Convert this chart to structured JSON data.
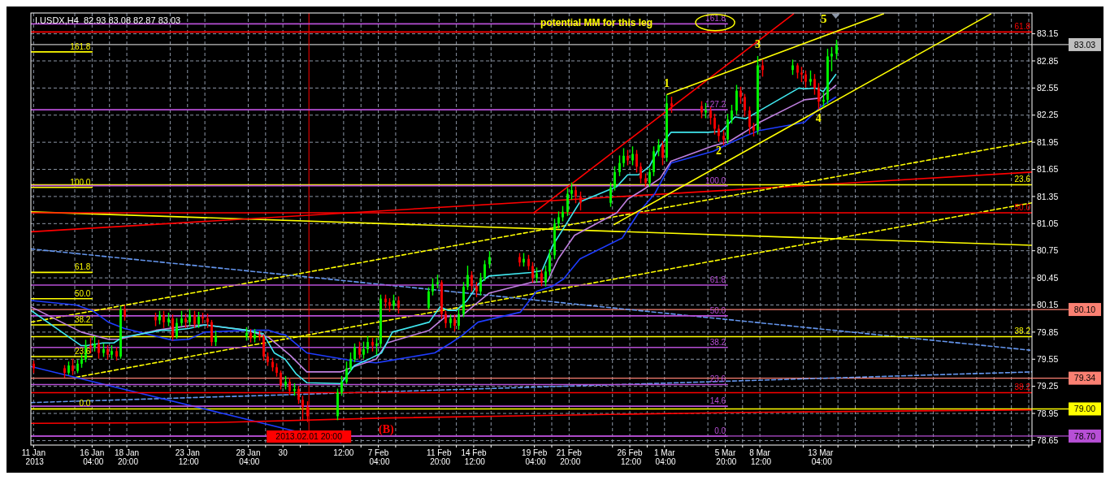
{
  "chart_data": {
    "type": "candlestick",
    "title": "I.USDX,H4  82.93 83.08 82.87 83.03",
    "xlim": [
      "2013-01-11T11:00",
      "2013-03-29T10:00"
    ],
    "ylim": [
      78.6,
      83.38
    ],
    "yticks": [
      78.65,
      78.95,
      79.25,
      79.55,
      79.85,
      80.15,
      80.45,
      80.75,
      81.05,
      81.35,
      81.65,
      81.95,
      82.25,
      82.55,
      82.85,
      83.15
    ],
    "xticks": [
      {
        "value": "2013-01-11T16:00",
        "label": "11 Jan 2013"
      },
      {
        "value": "2013-01-14T20:00",
        "label": null
      },
      {
        "value": "2013-01-16T04:00",
        "label": "16 Jan 04:00"
      },
      {
        "value": "2013-01-17T12:00",
        "label": null
      },
      {
        "value": "2013-01-18T20:00",
        "label": "18 Jan 20:00"
      },
      {
        "value": "2013-01-22T04:00",
        "label": null
      },
      {
        "value": "2013-01-23T12:00",
        "label": "23 Jan 12:00"
      },
      {
        "value": "2013-01-24T20:00",
        "label": null
      },
      {
        "value": "2013-01-28T04:00",
        "label": "28 Jan 04:00"
      },
      {
        "value": "2013-01-29T12:00",
        "label": null
      },
      {
        "value": "2013-01-30T20:00",
        "label": "30"
      },
      {
        "value": "2013-02-01T04:00",
        "label": null
      },
      {
        "value": "2013-02-04T12:00",
        "label": "12:00"
      },
      {
        "value": "2013-02-05T20:00",
        "label": null
      },
      {
        "value": "2013-02-07T04:00",
        "label": "7 Feb 04:00"
      },
      {
        "value": "2013-02-08T12:00",
        "label": null
      },
      {
        "value": "2013-02-11T20:00",
        "label": "11 Feb 20:00"
      },
      {
        "value": "2013-02-13T04:00",
        "label": null
      },
      {
        "value": "2013-02-14T12:00",
        "label": "14 Feb 12:00"
      },
      {
        "value": "2013-02-15T20:00",
        "label": null
      },
      {
        "value": "2013-02-19T04:00",
        "label": "19 Feb 04:00"
      },
      {
        "value": "2013-02-20T12:00",
        "label": null
      },
      {
        "value": "2013-02-21T20:00",
        "label": "21 Feb 20:00"
      },
      {
        "value": "2013-02-25T04:00",
        "label": null
      },
      {
        "value": "2013-02-26T12:00",
        "label": "26 Feb 12:00"
      },
      {
        "value": "2013-02-27T20:00",
        "label": null
      },
      {
        "value": "2013-03-01T04:00",
        "label": "1 Mar 04:00"
      },
      {
        "value": "2013-03-04T12:00",
        "label": null
      },
      {
        "value": "2013-03-05T20:00",
        "label": "5 Mar 20:00"
      },
      {
        "value": "2013-03-07T04:00",
        "label": null
      },
      {
        "value": "2013-03-08T12:00",
        "label": "8 Mar 12:00"
      },
      {
        "value": "2013-03-11T20:00",
        "label": null
      },
      {
        "value": "2013-03-13T04:00",
        "label": "13 Mar 04:00"
      },
      {
        "value": "2013-03-14T12:00",
        "label": null
      },
      {
        "value": "2013-03-15T20:00",
        "label": null
      },
      {
        "value": "2013-03-19T04:00",
        "label": null
      },
      {
        "value": "2013-03-20T12:00",
        "label": null
      },
      {
        "value": "2013-03-21T20:00",
        "label": null
      },
      {
        "value": "2013-03-25T04:00",
        "label": null
      },
      {
        "value": "2013-03-26T12:00",
        "label": null
      },
      {
        "value": "2013-03-27T20:00",
        "label": null
      },
      {
        "value": "2013-03-29T04:00",
        "label": null
      }
    ],
    "grid": true,
    "legend": false,
    "series": [
      {
        "type": "line",
        "color": "#ffff00",
        "x": [
          "2013-01-11T11:00",
          "2013-03-29T10:00"
        ],
        "values": [
          81.18,
          80.81
        ]
      },
      {
        "type": "line",
        "color": "#ff0000",
        "x": [
          "2013-01-11T11:00",
          "2013-03-29T10:00"
        ],
        "values": [
          80.96,
          81.62
        ]
      },
      {
        "type": "line",
        "color": "#ffff00",
        "line_style": "dashed",
        "x": [
          "2013-01-11T11:00",
          "2013-03-29T10:00"
        ],
        "values": [
          79.96,
          81.96
        ]
      },
      {
        "type": "line",
        "color": "#ffff00",
        "line_style": "dashed",
        "x": [
          "2013-01-14T22:00",
          "2013-03-29T10:00"
        ],
        "values": [
          79.35,
          81.28
        ]
      },
      {
        "type": "line",
        "color": "#6495ed",
        "line_style": "dashed",
        "x": [
          "2013-01-11T11:00",
          "2013-03-29T06:00"
        ],
        "values": [
          80.77,
          79.65
        ]
      },
      {
        "type": "line",
        "color": "#6495ed",
        "line_style": "dashed",
        "x": [
          "2013-01-11T11:00",
          "2013-03-29T10:00"
        ],
        "values": [
          79.07,
          79.41
        ]
      },
      {
        "type": "line",
        "color": "#1e3cff",
        "x": [
          "2013-01-11T11:00",
          "2013-02-04T07:00"
        ],
        "values": [
          79.47,
          78.63
        ]
      },
      {
        "type": "line",
        "color": "#ff0000",
        "x": [
          "2013-01-11T11:00",
          "2013-01-25T16:00",
          "2013-02-07T20:00",
          "2013-02-21T00:00",
          "2013-03-06T04:00",
          "2013-03-29T10:00"
        ],
        "values": [
          78.84,
          78.85,
          78.9,
          78.93,
          78.96,
          78.99
        ]
      },
      {
        "type": "line",
        "name": "61.8",
        "color": "#ff0000",
        "x": [
          "2013-01-11T11:00",
          "2013-03-29T10:00"
        ],
        "values": [
          83.17,
          83.17
        ]
      },
      {
        "type": "line",
        "name": "23.6",
        "color": "#ffff00",
        "x": [
          "2013-01-11T11:00",
          "2013-03-29T10:00"
        ],
        "values": [
          81.48,
          81.48
        ]
      },
      {
        "type": "line",
        "name": "50.0",
        "color": "#ff0000",
        "x": [
          "2013-01-11T11:00",
          "2013-03-29T10:00"
        ],
        "values": [
          81.17,
          81.17
        ]
      },
      {
        "type": "line",
        "name": "38.2",
        "color": "#ffff00",
        "x": [
          "2013-01-11T11:00",
          "2013-03-29T10:00"
        ],
        "values": [
          79.8,
          79.8
        ]
      },
      {
        "type": "line",
        "name": "38.2",
        "color": "#ff0000",
        "x": [
          "2013-01-11T11:00",
          "2013-03-29T10:00"
        ],
        "values": [
          79.18,
          79.18
        ]
      },
      {
        "type": "line",
        "name": "161.8",
        "color": "#ffff00",
        "x": [
          "2013-01-11T11:00",
          "2013-01-16T04:00"
        ],
        "values": [
          82.95,
          82.95
        ]
      },
      {
        "type": "line",
        "name": "100.0",
        "color": "#ffff00",
        "x": [
          "2013-01-11T11:00",
          "2013-01-16T04:00"
        ],
        "values": [
          81.45,
          81.45
        ]
      },
      {
        "type": "line",
        "name": "61.8",
        "color": "#ffff00",
        "x": [
          "2013-01-11T11:00",
          "2013-01-16T04:00"
        ],
        "values": [
          80.51,
          80.51
        ]
      },
      {
        "type": "line",
        "name": "50.0",
        "color": "#ffff00",
        "x": [
          "2013-01-11T11:00",
          "2013-01-16T04:00"
        ],
        "values": [
          80.22,
          80.22
        ]
      },
      {
        "type": "line",
        "name": "38.2",
        "color": "#ffff00",
        "x": [
          "2013-01-11T11:00",
          "2013-01-16T04:00"
        ],
        "values": [
          79.93,
          79.93
        ]
      },
      {
        "type": "line",
        "name": "23.6",
        "color": "#ffff00",
        "x": [
          "2013-01-11T11:00",
          "2013-01-16T04:00"
        ],
        "values": [
          79.58,
          79.58
        ]
      },
      {
        "type": "line",
        "name": "0.0",
        "color": "#ffff00",
        "x": [
          "2013-01-11T11:00",
          "2013-01-16T04:00"
        ],
        "values": [
          79.0,
          79.0
        ]
      },
      {
        "type": "line",
        "name": "161.8",
        "color": "#b74fd6",
        "x": [
          "2013-01-11T11:00",
          "2013-03-06T00:00"
        ],
        "values": [
          83.26,
          83.26
        ]
      },
      {
        "type": "line",
        "name": "127.2",
        "color": "#b74fd6",
        "x": [
          "2013-01-11T11:00",
          "2013-03-06T00:00"
        ],
        "values": [
          82.31,
          82.31
        ]
      },
      {
        "type": "line",
        "name": "100.0",
        "color": "#b74fd6",
        "x": [
          "2013-01-11T11:00",
          "2013-03-06T00:00"
        ],
        "values": [
          81.47,
          81.47
        ]
      },
      {
        "type": "line",
        "name": "61.8",
        "color": "#b74fd6",
        "x": [
          "2013-01-11T11:00",
          "2013-03-06T00:00"
        ],
        "values": [
          80.37,
          80.37
        ]
      },
      {
        "type": "line",
        "name": "50.0",
        "color": "#b74fd6",
        "x": [
          "2013-01-11T11:00",
          "2013-03-06T00:00"
        ],
        "values": [
          80.03,
          80.03
        ]
      },
      {
        "type": "line",
        "name": "38.2",
        "color": "#b74fd6",
        "x": [
          "2013-01-11T11:00",
          "2013-03-06T00:00"
        ],
        "values": [
          79.68,
          79.68
        ]
      },
      {
        "type": "line",
        "name": "23.6",
        "color": "#b74fd6",
        "x": [
          "2013-01-11T11:00",
          "2013-03-06T00:00"
        ],
        "values": [
          79.27,
          79.27
        ]
      },
      {
        "type": "line",
        "name": "14.6",
        "color": "#b74fd6",
        "x": [
          "2013-01-11T11:00",
          "2013-03-06T00:00"
        ],
        "values": [
          79.03,
          79.03
        ]
      },
      {
        "type": "line",
        "name": "0.0",
        "color": "#b74fd6",
        "x": [
          "2013-01-11T11:00",
          "2013-03-06T00:00"
        ],
        "values": [
          78.7,
          78.7
        ]
      },
      {
        "type": "line",
        "color": "#1e3cff",
        "x": [
          "2013-01-11T11:00",
          "2013-01-14T22:00",
          "2013-01-16T04:00",
          "2013-01-17T10:00",
          "2013-01-18T16:00",
          "2013-01-22T08:00",
          "2013-01-23T14:00",
          "2013-01-24T20:00",
          "2013-01-28T12:00",
          "2013-01-29T18:00",
          "2013-01-30T14:00",
          "2013-01-31T00:00",
          "2013-02-01T16:00",
          "2013-02-05T08:00",
          "2013-02-07T00:00",
          "2013-02-08T06:00",
          "2013-02-11T12:00",
          "2013-02-12T18:00",
          "2013-02-13T14:00",
          "2013-02-14T20:00",
          "2013-02-18T02:00",
          "2013-02-19T08:00",
          "2013-02-20T14:00",
          "2013-02-21T10:00",
          "2013-02-22T16:00",
          "2013-02-25T22:00",
          "2013-02-27T04:00",
          "2013-02-28T10:00",
          "2013-03-01T16:00",
          "2013-03-04T22:00",
          "2013-03-06T04:00",
          "2013-03-07T10:00",
          "2013-03-08T11:00",
          "2013-03-11T22:00",
          "2013-03-13T04:00",
          "2013-03-14T08:00"
        ],
        "values": [
          80.2,
          80.15,
          80.09,
          79.96,
          79.89,
          79.76,
          79.77,
          79.85,
          79.87,
          79.87,
          79.83,
          79.82,
          79.62,
          79.53,
          79.51,
          79.54,
          79.62,
          79.73,
          79.81,
          79.96,
          80.07,
          80.3,
          80.36,
          80.44,
          80.66,
          80.89,
          81.17,
          81.38,
          81.72,
          81.85,
          81.94,
          82.02,
          82.08,
          82.17,
          82.34,
          82.45
        ]
      },
      {
        "type": "line",
        "color": "#c080e0",
        "x": [
          "2013-01-11T11:00",
          "2013-01-15T08:00",
          "2013-01-17T10:00",
          "2013-01-18T06:00",
          "2013-01-21T02:00",
          "2013-01-23T14:00",
          "2013-01-24T20:00",
          "2013-01-28T02:00",
          "2013-01-29T08:00",
          "2013-01-29T18:00",
          "2013-01-30T14:00",
          "2013-01-31T10:00",
          "2013-02-01T16:00",
          "2013-02-04T07:00",
          "2013-02-05T08:00",
          "2013-02-07T00:00",
          "2013-02-07T20:00",
          "2013-02-11T02:00",
          "2013-02-12T08:00",
          "2013-02-13T14:00",
          "2013-02-14T10:00",
          "2013-02-15T16:00",
          "2013-02-18T22:00",
          "2013-02-20T04:00",
          "2013-02-21T00:00",
          "2013-02-22T06:00",
          "2013-02-25T12:00",
          "2013-02-26T08:00",
          "2013-02-27T14:00",
          "2013-02-28T20:00",
          "2013-03-01T16:00",
          "2013-03-04T22:00",
          "2013-03-06T04:00",
          "2013-03-07T10:00",
          "2013-03-08T11:00",
          "2013-03-11T22:00",
          "2013-03-13T04:00",
          "2013-03-14T08:00"
        ],
        "values": [
          80.13,
          79.85,
          79.77,
          79.77,
          79.87,
          79.92,
          79.93,
          79.87,
          79.81,
          79.79,
          79.69,
          79.59,
          79.41,
          79.41,
          79.47,
          79.55,
          79.73,
          79.87,
          80.02,
          80.03,
          80.13,
          80.28,
          80.4,
          80.41,
          80.66,
          80.92,
          81.17,
          81.32,
          81.43,
          81.55,
          81.74,
          81.91,
          81.96,
          82.07,
          82.17,
          82.42,
          82.44,
          82.58
        ]
      },
      {
        "type": "line",
        "color": "#40e8f0",
        "x": [
          "2013-01-11T11:00",
          "2013-01-15T08:00",
          "2013-01-15T18:00",
          "2013-01-17T00:00",
          "2013-01-17T20:00",
          "2013-01-18T11:00",
          "2013-01-21T12:00",
          "2013-01-22T08:00",
          "2013-01-23T14:00",
          "2013-01-24T20:00",
          "2013-01-28T02:00",
          "2013-01-29T08:00",
          "2013-01-30T04:00",
          "2013-01-31T00:00",
          "2013-01-31T20:00",
          "2013-02-01T16:00",
          "2013-02-04T07:00",
          "2013-02-05T08:00",
          "2013-02-06T14:00",
          "2013-02-07T10:00",
          "2013-02-08T06:00",
          "2013-02-11T02:00",
          "2013-02-11T22:00",
          "2013-02-12T13:00",
          "2013-02-13T04:00",
          "2013-02-14T00:00",
          "2013-02-14T20:00",
          "2013-02-15T16:00",
          "2013-02-18T22:00",
          "2013-02-19T18:00",
          "2013-02-20T14:00",
          "2013-02-21T10:00",
          "2013-02-22T16:00",
          "2013-02-25T12:00",
          "2013-02-26T08:00",
          "2013-02-27T04:00",
          "2013-02-28T00:00",
          "2013-02-28T20:00",
          "2013-03-01T16:00",
          "2013-03-04T12:00",
          "2013-03-05T13:00",
          "2013-03-06T14:00",
          "2013-03-07T10:00",
          "2013-03-08T06:00",
          "2013-03-11T12:00",
          "2013-03-11T22:00",
          "2013-03-12T18:00",
          "2013-03-13T09:00",
          "2013-03-14T08:00"
        ],
        "values": [
          80.09,
          79.7,
          79.7,
          79.73,
          79.73,
          79.79,
          79.87,
          79.87,
          79.89,
          79.93,
          79.87,
          79.83,
          79.62,
          79.55,
          79.39,
          79.29,
          79.28,
          79.48,
          79.56,
          79.62,
          79.85,
          79.96,
          80.13,
          80.09,
          80.09,
          80.2,
          80.38,
          80.47,
          80.51,
          80.53,
          80.81,
          81.0,
          81.29,
          81.46,
          81.59,
          81.59,
          81.68,
          81.91,
          82.06,
          82.06,
          82.07,
          82.23,
          82.21,
          82.28,
          82.55,
          82.54,
          82.55,
          82.51,
          82.7
        ]
      },
      {
        "type": "line",
        "color": "#ff0000",
        "x": [
          "2013-02-19T03:00",
          "2013-03-11T02:00"
        ],
        "values": [
          81.17,
          83.37
        ]
      },
      {
        "type": "line",
        "color": "#ffff00",
        "x": [
          "2013-02-25T07:00",
          "2013-03-26T06:00"
        ],
        "values": [
          81.04,
          83.37
        ]
      },
      {
        "type": "line",
        "color": "#ffff00",
        "x": [
          "2013-03-01T09:00",
          "2013-03-18T00:00"
        ],
        "values": [
          82.48,
          83.37
        ]
      },
      {
        "color": "#00ff00",
        "x": [
          "2013-01-14T08:00",
          "2013-01-15T00:00",
          "2013-01-15T08:00",
          "2013-01-15T16:00",
          "2013-01-16T08:00",
          "2013-01-17T00:00",
          "2013-01-17T16:00",
          "2013-01-18T08:00",
          "2013-01-21T08:00",
          "2013-01-22T00:00",
          "2013-01-22T16:00",
          "2013-01-23T00:00",
          "2013-01-23T16:00",
          "2013-01-24T08:00",
          "2013-01-25T16:00",
          "2013-01-28T00:00",
          "2013-01-28T16:00",
          "2013-01-31T00:00",
          "2013-01-31T16:00",
          "2013-02-04T00:00",
          "2013-02-04T08:00",
          "2013-02-04T16:00",
          "2013-02-05T00:00",
          "2013-02-05T08:00",
          "2013-02-06T00:00",
          "2013-02-06T08:00",
          "2013-02-07T00:00",
          "2013-02-07T08:00",
          "2013-02-08T08:00",
          "2013-02-11T00:00",
          "2013-02-11T08:00",
          "2013-02-11T16:00",
          "2013-02-12T16:00",
          "2013-02-13T08:00",
          "2013-02-13T16:00",
          "2013-02-14T00:00",
          "2013-02-15T00:00",
          "2013-02-15T08:00",
          "2013-02-15T16:00",
          "2013-02-18T08:00",
          "2013-02-19T08:00",
          "2013-02-20T00:00",
          "2013-02-20T08:00",
          "2013-02-20T16:00",
          "2013-02-21T00:00",
          "2013-02-21T08:00",
          "2013-02-21T16:00",
          "2013-02-22T00:00",
          "2013-02-25T00:00",
          "2013-02-25T08:00",
          "2013-02-25T16:00",
          "2013-02-26T00:00",
          "2013-02-26T16:00",
          "2013-02-28T00:00",
          "2013-02-28T08:00",
          "2013-02-28T16:00",
          "2013-03-01T08:00",
          "2013-03-04T08:00",
          "2013-03-06T00:00",
          "2013-03-06T08:00",
          "2013-03-06T16:00",
          "2013-03-08T08:00",
          "2013-03-11T00:00",
          "2013-03-12T08:00",
          "2013-03-13T08:00",
          "2013-03-13T16:00",
          "2013-03-14T00:00",
          "2013-03-14T08:00"
        ],
        "ohlc": [
          [
            79.4,
            79.52,
            79.38,
            79.48
          ],
          [
            79.42,
            79.54,
            79.4,
            79.5
          ],
          [
            79.5,
            79.6,
            79.46,
            79.55
          ],
          [
            79.55,
            79.76,
            79.52,
            79.7
          ],
          [
            79.68,
            79.8,
            79.64,
            79.72
          ],
          [
            79.62,
            79.72,
            79.58,
            79.66
          ],
          [
            79.6,
            79.7,
            79.56,
            79.64
          ],
          [
            79.58,
            80.13,
            79.56,
            80.1
          ],
          [
            79.98,
            80.08,
            79.94,
            80.04
          ],
          [
            79.96,
            80.06,
            79.92,
            80.0
          ],
          [
            79.8,
            80.0,
            79.78,
            79.95
          ],
          [
            79.95,
            80.08,
            79.92,
            80.0
          ],
          [
            79.96,
            80.1,
            79.92,
            80.04
          ],
          [
            79.94,
            80.07,
            79.9,
            80.02
          ],
          [
            79.74,
            79.86,
            79.7,
            79.8
          ],
          [
            79.8,
            79.9,
            79.76,
            79.84
          ],
          [
            79.78,
            79.88,
            79.74,
            79.82
          ],
          [
            79.26,
            79.36,
            79.22,
            79.3
          ],
          [
            79.2,
            79.28,
            79.15,
            79.22
          ],
          [
            78.92,
            79.22,
            78.88,
            79.18
          ],
          [
            79.18,
            79.36,
            79.15,
            79.3
          ],
          [
            79.3,
            79.52,
            79.28,
            79.45
          ],
          [
            79.45,
            79.62,
            79.42,
            79.55
          ],
          [
            79.55,
            79.72,
            79.52,
            79.68
          ],
          [
            79.6,
            79.74,
            79.56,
            79.66
          ],
          [
            79.66,
            79.8,
            79.62,
            79.74
          ],
          [
            79.7,
            79.78,
            79.6,
            79.72
          ],
          [
            79.72,
            80.26,
            79.68,
            80.22
          ],
          [
            80.14,
            80.26,
            80.1,
            80.2
          ],
          [
            80.12,
            80.34,
            80.1,
            80.3
          ],
          [
            80.3,
            80.44,
            80.26,
            80.38
          ],
          [
            80.38,
            80.48,
            80.34,
            80.4
          ],
          [
            79.95,
            80.04,
            79.9,
            80.0
          ],
          [
            79.92,
            80.1,
            79.88,
            80.05
          ],
          [
            80.05,
            80.4,
            80.02,
            80.35
          ],
          [
            80.35,
            80.58,
            80.32,
            80.48
          ],
          [
            80.3,
            80.5,
            80.26,
            80.45
          ],
          [
            80.45,
            80.64,
            80.42,
            80.6
          ],
          [
            80.6,
            80.74,
            80.56,
            80.68
          ],
          [
            80.62,
            80.72,
            80.58,
            80.66
          ],
          [
            80.45,
            80.56,
            80.4,
            80.5
          ],
          [
            80.4,
            80.58,
            80.36,
            80.52
          ],
          [
            80.52,
            80.76,
            80.48,
            80.7
          ],
          [
            80.7,
            81.1,
            80.66,
            81.05
          ],
          [
            81.05,
            81.18,
            81.0,
            81.12
          ],
          [
            81.12,
            81.24,
            81.08,
            81.18
          ],
          [
            81.18,
            81.44,
            81.14,
            81.38
          ],
          [
            81.38,
            81.5,
            81.32,
            81.42
          ],
          [
            81.28,
            81.5,
            81.24,
            81.45
          ],
          [
            81.45,
            81.68,
            81.42,
            81.62
          ],
          [
            81.62,
            81.8,
            81.58,
            81.72
          ],
          [
            81.72,
            81.88,
            81.68,
            81.8
          ],
          [
            81.75,
            81.9,
            81.7,
            81.82
          ],
          [
            81.5,
            81.66,
            81.46,
            81.62
          ],
          [
            81.62,
            81.9,
            81.58,
            81.85
          ],
          [
            81.85,
            81.98,
            81.8,
            81.92
          ],
          [
            81.78,
            82.47,
            81.74,
            82.38
          ],
          [
            82.28,
            82.38,
            82.22,
            82.3
          ],
          [
            81.98,
            82.26,
            81.94,
            82.2
          ],
          [
            82.2,
            82.36,
            82.16,
            82.3
          ],
          [
            82.3,
            82.58,
            82.26,
            82.52
          ],
          [
            82.08,
            82.9,
            82.04,
            82.8
          ],
          [
            82.75,
            82.86,
            82.7,
            82.8
          ],
          [
            82.62,
            82.74,
            82.58,
            82.65
          ],
          [
            82.4,
            82.5,
            82.34,
            82.42
          ],
          [
            82.42,
            82.98,
            82.38,
            82.9
          ],
          [
            82.9,
            83.0,
            82.74,
            82.93
          ],
          [
            82.93,
            83.08,
            82.87,
            83.03
          ]
        ]
      },
      {
        "color": "#ff0000",
        "x": [
          "2013-01-11T16:00",
          "2013-01-14T00:00",
          "2013-01-14T16:00",
          "2013-01-16T00:00",
          "2013-01-16T16:00",
          "2013-01-17T08:00",
          "2013-01-18T00:00",
          "2013-01-18T16:00",
          "2013-01-21T00:00",
          "2013-01-21T16:00",
          "2013-01-22T08:00",
          "2013-01-23T08:00",
          "2013-01-24T00:00",
          "2013-01-24T16:00",
          "2013-01-25T00:00",
          "2013-01-25T08:00",
          "2013-01-28T08:00",
          "2013-01-29T00:00",
          "2013-01-29T08:00",
          "2013-01-29T16:00",
          "2013-01-30T00:00",
          "2013-01-30T08:00",
          "2013-01-30T16:00",
          "2013-01-31T08:00",
          "2013-02-01T00:00",
          "2013-02-01T08:00",
          "2013-02-01T16:00",
          "2013-02-05T16:00",
          "2013-02-06T16:00",
          "2013-02-07T16:00",
          "2013-02-08T00:00",
          "2013-02-08T16:00",
          "2013-02-12T00:00",
          "2013-02-12T08:00",
          "2013-02-13T00:00",
          "2013-02-14T08:00",
          "2013-02-14T16:00",
          "2013-02-18T00:00",
          "2013-02-18T16:00",
          "2013-02-19T00:00",
          "2013-02-19T16:00",
          "2013-02-22T08:00",
          "2013-02-22T16:00",
          "2013-02-26T08:00",
          "2013-02-27T00:00",
          "2013-02-27T08:00",
          "2013-02-27T16:00",
          "2013-03-01T00:00",
          "2013-03-01T16:00",
          "2013-03-04T00:00",
          "2013-03-04T16:00",
          "2013-03-05T00:00",
          "2013-03-05T08:00",
          "2013-03-05T16:00",
          "2013-03-07T00:00",
          "2013-03-07T08:00",
          "2013-03-07T16:00",
          "2013-03-08T00:00",
          "2013-03-08T16:00",
          "2013-03-11T08:00",
          "2013-03-11T16:00",
          "2013-03-12T00:00",
          "2013-03-12T16:00",
          "2013-03-13T00:00"
        ],
        "ohlc": [
          [
            79.5,
            79.53,
            79.4,
            79.45
          ],
          [
            79.45,
            79.48,
            79.35,
            79.4
          ],
          [
            79.48,
            79.55,
            79.38,
            79.42
          ],
          [
            79.7,
            79.78,
            79.62,
            79.68
          ],
          [
            79.72,
            79.76,
            79.56,
            79.62
          ],
          [
            79.66,
            79.7,
            79.55,
            79.6
          ],
          [
            79.64,
            79.68,
            79.54,
            79.58
          ],
          [
            80.1,
            80.14,
            79.98,
            80.02
          ],
          [
            80.02,
            80.06,
            79.92,
            79.98
          ],
          [
            80.04,
            80.08,
            79.9,
            79.96
          ],
          [
            80.0,
            80.04,
            79.76,
            79.8
          ],
          [
            80.0,
            80.05,
            79.9,
            79.96
          ],
          [
            80.04,
            80.08,
            79.9,
            79.94
          ],
          [
            80.02,
            80.06,
            79.95,
            80.0
          ],
          [
            80.0,
            80.05,
            79.9,
            79.96
          ],
          [
            79.96,
            79.98,
            79.7,
            79.74
          ],
          [
            79.84,
            79.88,
            79.74,
            79.78
          ],
          [
            79.82,
            79.86,
            79.76,
            79.8
          ],
          [
            79.8,
            79.82,
            79.54,
            79.58
          ],
          [
            79.58,
            79.62,
            79.48,
            79.52
          ],
          [
            79.52,
            79.56,
            79.42,
            79.46
          ],
          [
            79.46,
            79.5,
            79.36,
            79.4
          ],
          [
            79.4,
            79.42,
            79.22,
            79.26
          ],
          [
            79.3,
            79.34,
            79.16,
            79.2
          ],
          [
            79.22,
            79.25,
            79.06,
            79.1
          ],
          [
            79.1,
            79.14,
            78.88,
            79.02
          ],
          [
            79.02,
            79.08,
            78.86,
            78.92
          ],
          [
            79.68,
            79.74,
            79.56,
            79.6
          ],
          [
            79.74,
            79.78,
            79.64,
            79.7
          ],
          [
            80.22,
            80.26,
            80.12,
            80.18
          ],
          [
            80.18,
            80.22,
            80.08,
            80.14
          ],
          [
            80.2,
            80.24,
            80.06,
            80.12
          ],
          [
            80.4,
            80.42,
            80.0,
            80.05
          ],
          [
            80.05,
            80.08,
            79.9,
            79.95
          ],
          [
            80.0,
            80.04,
            79.86,
            79.92
          ],
          [
            80.48,
            80.52,
            80.3,
            80.36
          ],
          [
            80.36,
            80.4,
            80.24,
            80.3
          ],
          [
            80.68,
            80.72,
            80.58,
            80.62
          ],
          [
            80.66,
            80.7,
            80.54,
            80.58
          ],
          [
            80.58,
            80.62,
            80.4,
            80.45
          ],
          [
            80.5,
            80.54,
            80.36,
            80.4
          ],
          [
            81.42,
            81.46,
            81.28,
            81.35
          ],
          [
            81.35,
            81.4,
            81.2,
            81.28
          ],
          [
            81.8,
            81.86,
            81.7,
            81.75
          ],
          [
            81.82,
            81.86,
            81.62,
            81.68
          ],
          [
            81.68,
            81.72,
            81.5,
            81.55
          ],
          [
            81.55,
            81.6,
            81.46,
            81.5
          ],
          [
            81.92,
            81.96,
            81.7,
            81.78
          ],
          [
            82.38,
            82.45,
            82.28,
            82.35
          ],
          [
            82.35,
            82.4,
            82.22,
            82.28
          ],
          [
            82.3,
            82.34,
            82.15,
            82.22
          ],
          [
            82.22,
            82.26,
            82.04,
            82.1
          ],
          [
            82.1,
            82.14,
            81.96,
            82.02
          ],
          [
            82.02,
            82.08,
            81.92,
            81.98
          ],
          [
            82.52,
            82.56,
            82.38,
            82.45
          ],
          [
            82.45,
            82.48,
            82.24,
            82.3
          ],
          [
            82.3,
            82.34,
            82.04,
            82.12
          ],
          [
            82.12,
            82.16,
            82.02,
            82.08
          ],
          [
            82.8,
            82.86,
            82.68,
            82.75
          ],
          [
            82.8,
            82.82,
            82.66,
            82.72
          ],
          [
            82.72,
            82.78,
            82.62,
            82.7
          ],
          [
            82.7,
            82.74,
            82.56,
            82.62
          ],
          [
            82.65,
            82.7,
            82.48,
            82.55
          ],
          [
            82.55,
            82.6,
            82.32,
            82.4
          ]
        ]
      }
    ],
    "ref_lines": [
      {
        "axis": "y",
        "value": 83.03,
        "color": "#c0c0c0",
        "label": "83.03"
      },
      {
        "axis": "y",
        "value": 80.1,
        "color": "#fa8072",
        "label": "80.10"
      },
      {
        "axis": "y",
        "value": 79.34,
        "color": "#fa8072",
        "label": "79.34"
      },
      {
        "axis": "y",
        "value": 79.0,
        "color": "#ffff00",
        "label": "79.00"
      },
      {
        "axis": "y",
        "value": 78.7,
        "color": "#b74fd6",
        "label": "78.70"
      },
      {
        "axis": "x",
        "value": "2013-02-01T20:00",
        "color": "#ff0000",
        "label": "2013.02.01 20:00"
      }
    ],
    "annotations": [
      "potential MM for this leg",
      "5",
      "(B)",
      {
        "text": "1",
        "x": "2013-03-01T08:00",
        "y": 82.47
      },
      {
        "text": "2",
        "x": "2013-03-05T08:00",
        "y": 81.96
      },
      {
        "text": "3",
        "x": "2013-03-08T08:00",
        "y": 82.9
      },
      {
        "text": "4",
        "x": "2013-03-13T00:00",
        "y": 82.32
      }
    ]
  }
}
